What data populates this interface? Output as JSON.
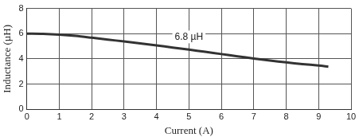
{
  "chart_data": {
    "type": "line",
    "x_label": "Current (A)",
    "y_label": "Inductance (µH)",
    "series": [
      {
        "name": "6.8 µH",
        "color": "#333333",
        "x": [
          0,
          0.5,
          1,
          1.5,
          2,
          2.5,
          3,
          3.5,
          4,
          4.5,
          5,
          5.5,
          6,
          6.5,
          7,
          7.5,
          8,
          8.5,
          9,
          9.3
        ],
        "values": [
          6.0,
          5.98,
          5.92,
          5.82,
          5.68,
          5.53,
          5.38,
          5.23,
          5.07,
          4.9,
          4.73,
          4.56,
          4.38,
          4.2,
          4.03,
          3.87,
          3.72,
          3.59,
          3.47,
          3.38
        ]
      }
    ],
    "xlim": [
      0,
      10
    ],
    "xticks": [
      0,
      1,
      2,
      3,
      4,
      5,
      6,
      7,
      8,
      9,
      10
    ],
    "ylim": [
      0,
      8
    ],
    "yticks": [
      0,
      2,
      4,
      6,
      8
    ],
    "grid": true
  }
}
